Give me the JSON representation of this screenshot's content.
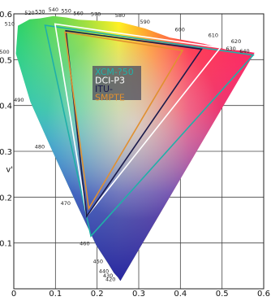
{
  "chart_data": {
    "type": "scatter",
    "title": "",
    "xlabel": "",
    "ylabel": "v'",
    "xlim": [
      0,
      0.6
    ],
    "ylim": [
      0,
      0.6
    ],
    "grid": true,
    "legend_placement": "top-center",
    "x_ticks": [
      {
        "value": 0,
        "label": "0"
      },
      {
        "value": 0.1,
        "label": "0.1"
      },
      {
        "value": 0.2,
        "label": "0.2"
      },
      {
        "value": 0.3,
        "label": "0.3"
      },
      {
        "value": 0.4,
        "label": "0.4"
      },
      {
        "value": 0.5,
        "label": "0.5"
      },
      {
        "value": 0.6,
        "label": "0.6"
      }
    ],
    "y_ticks": [
      {
        "value": 0.1,
        "label": "0.1"
      },
      {
        "value": 0.2,
        "label": "0.2"
      },
      {
        "value": 0.3,
        "label": "0.3"
      },
      {
        "value": 0.4,
        "label": "0.4"
      },
      {
        "value": 0.5,
        "label": "0.5"
      },
      {
        "value": 0.6,
        "label": "0.6"
      }
    ],
    "spectral_locus": [
      {
        "nm": "420",
        "u": 0.256,
        "v": 0.017
      },
      {
        "nm": "430",
        "u": 0.25,
        "v": 0.025
      },
      {
        "nm": "440",
        "u": 0.24,
        "v": 0.035
      },
      {
        "nm": "450",
        "u": 0.226,
        "v": 0.056
      },
      {
        "nm": "460",
        "u": 0.198,
        "v": 0.095
      },
      {
        "nm": "470",
        "u": 0.152,
        "v": 0.183
      },
      {
        "nm": "480",
        "u": 0.09,
        "v": 0.306
      },
      {
        "nm": "490",
        "u": 0.04,
        "v": 0.408
      },
      {
        "nm": "500",
        "u": 0.005,
        "v": 0.513
      },
      {
        "nm": "510",
        "u": 0.01,
        "v": 0.574
      },
      {
        "nm": "520",
        "u": 0.038,
        "v": 0.588
      },
      {
        "nm": "530",
        "u": 0.063,
        "v": 0.59
      },
      {
        "nm": "540",
        "u": 0.095,
        "v": 0.595
      },
      {
        "nm": "550",
        "u": 0.126,
        "v": 0.592
      },
      {
        "nm": "560",
        "u": 0.155,
        "v": 0.587
      },
      {
        "nm": "570",
        "u": 0.197,
        "v": 0.585
      },
      {
        "nm": "580",
        "u": 0.255,
        "v": 0.582
      },
      {
        "nm": "590",
        "u": 0.315,
        "v": 0.568
      },
      {
        "nm": "600",
        "u": 0.375,
        "v": 0.548
      },
      {
        "nm": "610",
        "u": 0.455,
        "v": 0.535
      },
      {
        "nm": "620",
        "u": 0.51,
        "v": 0.522
      },
      {
        "nm": "630",
        "u": 0.545,
        "v": 0.52
      },
      {
        "nm": "640",
        "u": 0.578,
        "v": 0.515
      }
    ],
    "series": [
      {
        "name": "XCM-?50",
        "color": "#20b0a8",
        "points": [
          {
            "u": 0.075,
            "v": 0.575
          },
          {
            "u": 0.575,
            "v": 0.51
          },
          {
            "u": 0.185,
            "v": 0.115
          }
        ]
      },
      {
        "name": "DCI-P3",
        "color": "#ffffff",
        "points": [
          {
            "u": 0.099,
            "v": 0.578
          },
          {
            "u": 0.496,
            "v": 0.526
          },
          {
            "u": 0.175,
            "v": 0.158
          }
        ]
      },
      {
        "name": "ITU-",
        "color": "#1a1a4a",
        "points": [
          {
            "u": 0.125,
            "v": 0.563
          },
          {
            "u": 0.451,
            "v": 0.523
          },
          {
            "u": 0.175,
            "v": 0.158
          }
        ]
      },
      {
        "name": "SMPTE",
        "color": "#e09030",
        "points": [
          {
            "u": 0.123,
            "v": 0.56
          },
          {
            "u": 0.405,
            "v": 0.52
          },
          {
            "u": 0.18,
            "v": 0.175
          }
        ]
      }
    ]
  }
}
